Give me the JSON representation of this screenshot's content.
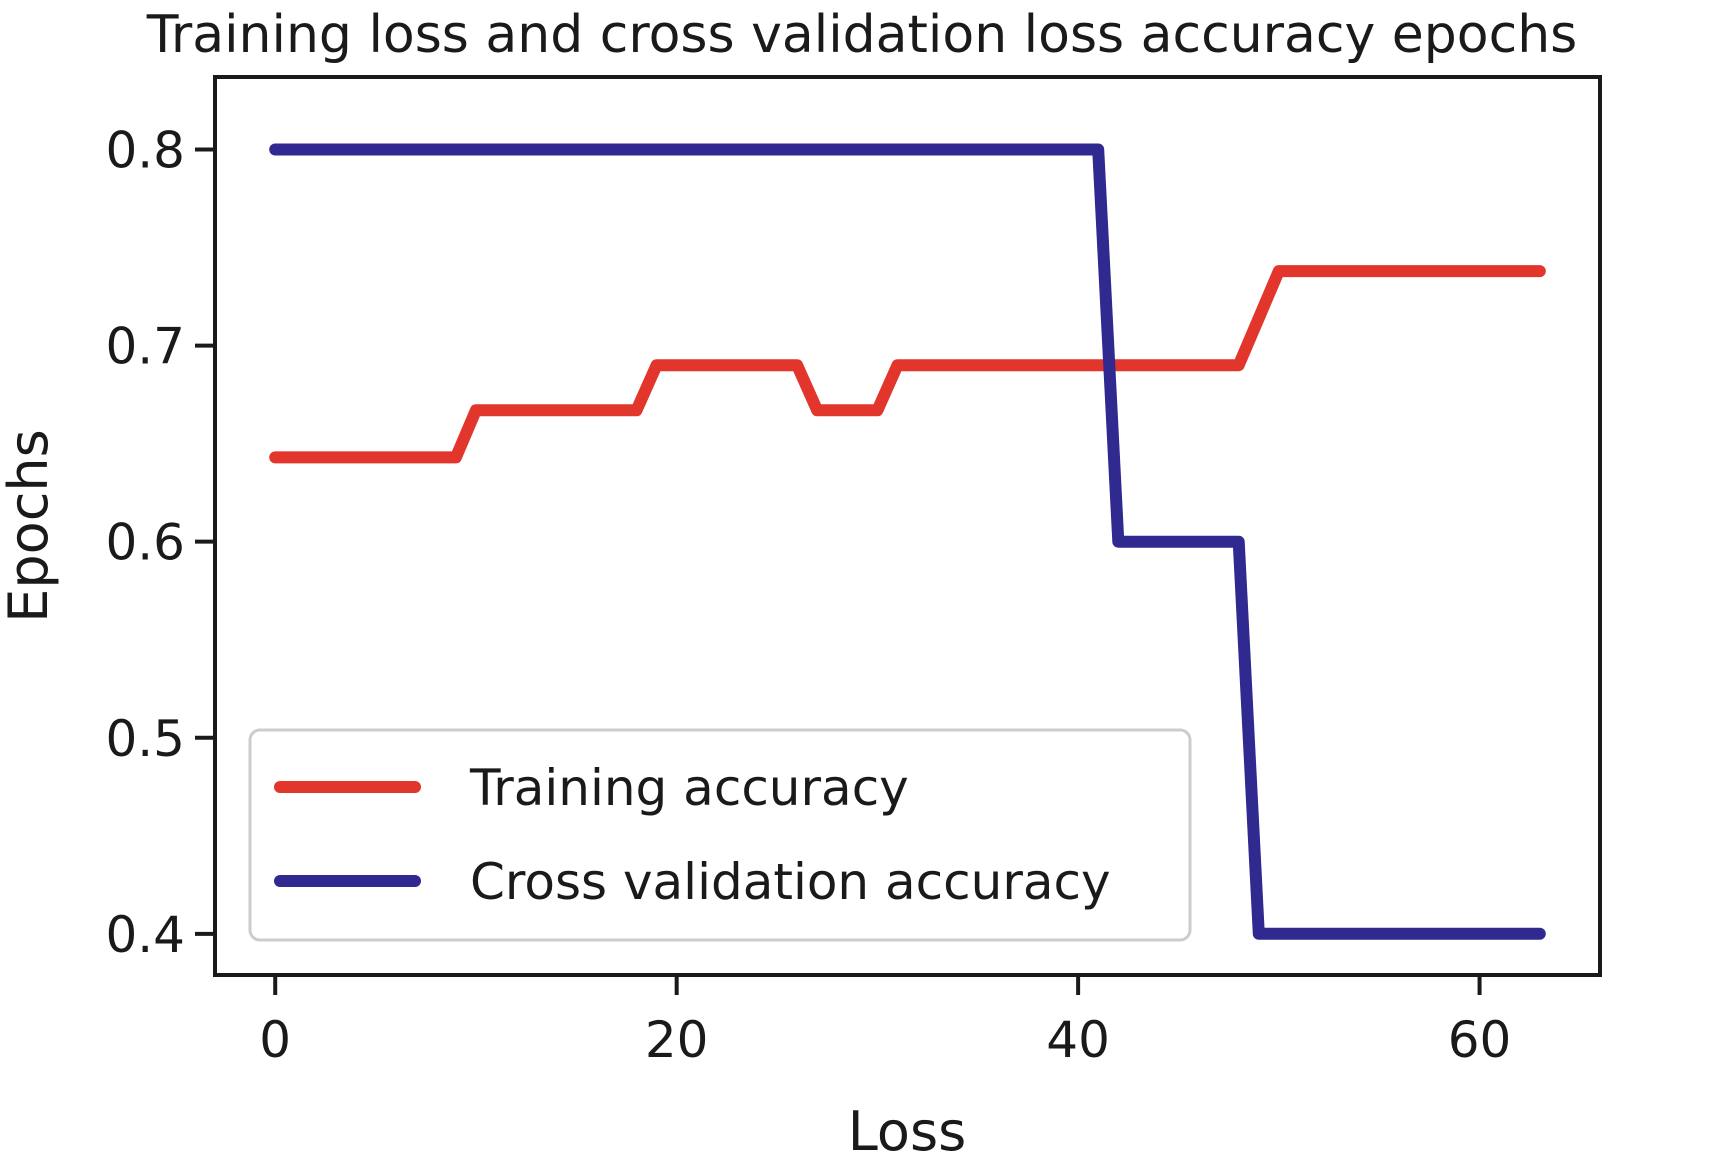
{
  "chart_data": {
    "type": "line",
    "title": "Training loss and cross validation loss accuracy epochs",
    "xlabel": "Loss",
    "ylabel": "Epochs",
    "xlim": [
      -3,
      66
    ],
    "ylim": [
      0.379,
      0.837
    ],
    "xticks": [
      0,
      20,
      40,
      60
    ],
    "yticks": [
      0.4,
      0.5,
      0.6,
      0.7,
      0.8
    ],
    "grid": false,
    "legend_position": "lower-left",
    "series": [
      {
        "name": "Training accuracy",
        "color": "#e2352b",
        "x": [
          0,
          9,
          10,
          18,
          19,
          26,
          27,
          30,
          31,
          48,
          50,
          63
        ],
        "y": [
          0.643,
          0.643,
          0.667,
          0.667,
          0.69,
          0.69,
          0.667,
          0.667,
          0.69,
          0.69,
          0.738,
          0.738
        ]
      },
      {
        "name": "Cross validation accuracy",
        "color": "#30298f",
        "x": [
          0,
          41,
          42,
          48,
          49,
          63
        ],
        "y": [
          0.8,
          0.8,
          0.6,
          0.6,
          0.4,
          0.4
        ]
      }
    ]
  }
}
